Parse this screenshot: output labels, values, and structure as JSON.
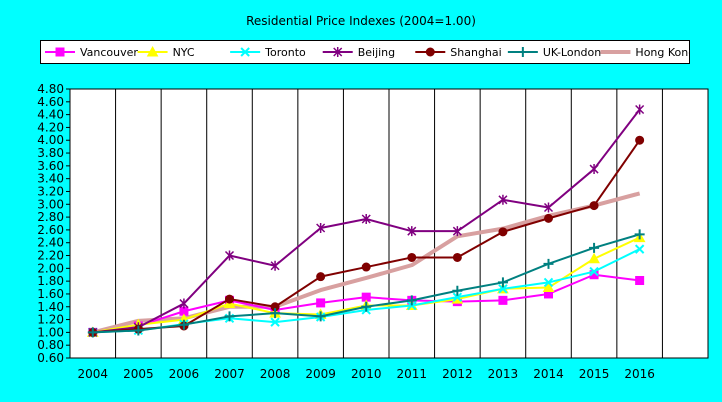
{
  "chart_data": {
    "type": "line",
    "title": "Residential Price Indexes (2004=1.00)",
    "xlabel": "",
    "ylabel": "",
    "categories": [
      "2004",
      "2005",
      "2006",
      "2007",
      "2008",
      "2009",
      "2010",
      "2011",
      "2012",
      "2013",
      "2014",
      "2015",
      "2016"
    ],
    "ylim": [
      0.6,
      4.8
    ],
    "yticks": [
      "0.60",
      "0.80",
      "1.00",
      "1.20",
      "1.40",
      "1.60",
      "1.80",
      "2.00",
      "2.20",
      "2.40",
      "2.60",
      "2.80",
      "3.00",
      "3.20",
      "3.40",
      "3.60",
      "3.80",
      "4.00",
      "4.20",
      "4.40",
      "4.60",
      "4.80"
    ],
    "grid": "vertical",
    "legend_position": "top",
    "series": [
      {
        "name": "Vancouver",
        "color": "#FF00FF",
        "marker": "square",
        "width": 2,
        "values": [
          1.0,
          1.1,
          1.33,
          1.5,
          1.35,
          1.46,
          1.55,
          1.5,
          1.48,
          1.5,
          1.6,
          1.9,
          1.81
        ]
      },
      {
        "name": "NYC",
        "color": "#FFFF00",
        "marker": "triangle",
        "width": 2,
        "values": [
          1.0,
          1.12,
          1.2,
          1.45,
          1.3,
          1.28,
          1.42,
          1.42,
          1.52,
          1.68,
          1.7,
          2.15,
          2.48
        ]
      },
      {
        "name": "Toronto",
        "color": "#00FFFF",
        "marker": "x",
        "width": 2,
        "values": [
          1.0,
          1.03,
          1.13,
          1.22,
          1.16,
          1.24,
          1.35,
          1.42,
          1.55,
          1.68,
          1.78,
          1.95,
          2.3
        ]
      },
      {
        "name": "Beijing",
        "color": "#800080",
        "marker": "star",
        "width": 2,
        "values": [
          1.0,
          1.08,
          1.45,
          2.2,
          2.04,
          2.63,
          2.77,
          2.58,
          2.58,
          3.07,
          2.95,
          3.55,
          4.48
        ]
      },
      {
        "name": "Shanghai",
        "color": "#800000",
        "marker": "circle",
        "width": 2,
        "values": [
          1.0,
          1.05,
          1.1,
          1.52,
          1.4,
          1.87,
          2.02,
          2.17,
          2.17,
          2.57,
          2.78,
          2.98,
          4.0
        ]
      },
      {
        "name": "UK-London",
        "color": "#008080",
        "marker": "plus",
        "width": 2,
        "values": [
          1.0,
          1.03,
          1.12,
          1.25,
          1.3,
          1.25,
          1.4,
          1.5,
          1.65,
          1.78,
          2.07,
          2.32,
          2.53
        ]
      },
      {
        "name": "Hong Kong",
        "color": "#D8A0A0",
        "marker": "none",
        "width": 4,
        "values": [
          1.0,
          1.18,
          1.22,
          1.4,
          1.4,
          1.66,
          1.85,
          2.05,
          2.5,
          2.62,
          2.82,
          2.98,
          3.17
        ]
      }
    ]
  }
}
